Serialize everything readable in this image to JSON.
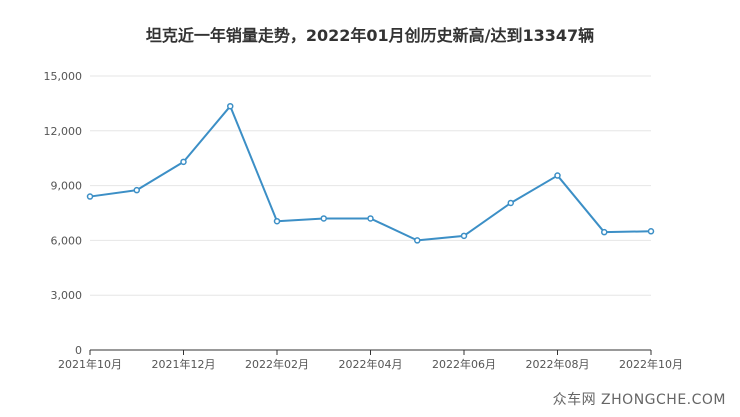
{
  "chart_data": {
    "type": "line",
    "title": "坦克近一年销量走势，2022年01月创历史新高/达到13347辆",
    "xlabel": "",
    "ylabel": "",
    "ylim": [
      0,
      15000
    ],
    "yticks": [
      "0",
      "3,000",
      "6,000",
      "9,000",
      "12,000",
      "15,000"
    ],
    "ytick_values": [
      0,
      3000,
      6000,
      9000,
      12000,
      15000
    ],
    "xtick_labels": [
      "2021年10月",
      "2021年12月",
      "2022年02月",
      "2022年04月",
      "2022年06月",
      "2022年08月",
      "2022年10月"
    ],
    "x": [
      "2021-10",
      "2021-11",
      "2021-12",
      "2022-01",
      "2022-02",
      "2022-03",
      "2022-04",
      "2022-05",
      "2022-06",
      "2022-07",
      "2022-08",
      "2022-09",
      "2022-10"
    ],
    "series": [
      {
        "values": [
          8400,
          8750,
          10300,
          13347,
          7050,
          7200,
          7200,
          6000,
          6250,
          8050,
          9550,
          6450,
          6500
        ]
      }
    ],
    "grid": true,
    "legend": "none",
    "line_color": "#3c8fc6"
  },
  "watermark": "众车网 ZHONGCHE.COM"
}
